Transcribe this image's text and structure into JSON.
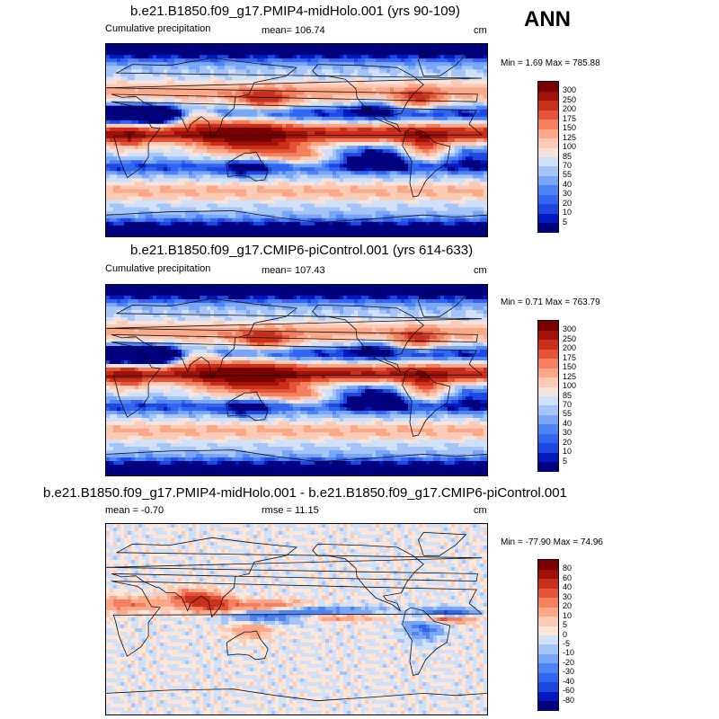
{
  "season": "ANN",
  "panels": [
    {
      "title": "b.e21.B1850.f09_g17.PMIP4-midHolo.001 (yrs 90-109)",
      "left_label": "Cumulative precipitation",
      "center_label": "mean= 106.74",
      "units": "cm",
      "minmax": "Min =   1.69 Max = 785.88",
      "kind": "precip"
    },
    {
      "title": "b.e21.B1850.f09_g17.CMIP6-piControl.001 (yrs 614-633)",
      "left_label": "Cumulative precipitation",
      "center_label": "mean= 107.43",
      "units": "cm",
      "minmax": "Min =   0.71 Max = 763.79",
      "kind": "precip"
    },
    {
      "title": "b.e21.B1850.f09_g17.PMIP4-midHolo.001 - b.e21.B1850.f09_g17.CMIP6-piControl.001",
      "left_label": "mean =  -0.70",
      "center_label": "rmse =  11.15",
      "units": "cm",
      "minmax": "Min = -77.90 Max =  74.96",
      "kind": "diff"
    }
  ],
  "chart_data": [
    {
      "type": "heatmap",
      "title": "b.e21.B1850.f09_g17.PMIP4-midHolo.001 (yrs 90-109)",
      "variable": "Cumulative precipitation",
      "units": "cm",
      "mean": 106.74,
      "min": 1.69,
      "max": 785.88,
      "colorbar_levels": [
        5,
        10,
        20,
        30,
        40,
        55,
        70,
        85,
        100,
        125,
        150,
        175,
        200,
        250,
        300
      ]
    },
    {
      "type": "heatmap",
      "title": "b.e21.B1850.f09_g17.CMIP6-piControl.001 (yrs 614-633)",
      "variable": "Cumulative precipitation",
      "units": "cm",
      "mean": 107.43,
      "min": 0.71,
      "max": 763.79,
      "colorbar_levels": [
        5,
        10,
        20,
        30,
        40,
        55,
        70,
        85,
        100,
        125,
        150,
        175,
        200,
        250,
        300
      ]
    },
    {
      "type": "heatmap",
      "title": "b.e21.B1850.f09_g17.PMIP4-midHolo.001 - b.e21.B1850.f09_g17.CMIP6-piControl.001",
      "units": "cm",
      "mean": -0.7,
      "rmse": 11.15,
      "min": -77.9,
      "max": 74.96,
      "colorbar_levels": [
        -80,
        -60,
        -40,
        -30,
        -20,
        -10,
        -5,
        0,
        5,
        10,
        20,
        30,
        40,
        60,
        80
      ]
    }
  ],
  "colors": {
    "precip_ramp": [
      "#00007f",
      "#0019bf",
      "#1e46e0",
      "#3265f0",
      "#4f84f5",
      "#7aa6f7",
      "#a5c4f7",
      "#cfe0f8",
      "#f6e4dc",
      "#fdcab5",
      "#fba889",
      "#f4805f",
      "#e55437",
      "#c8301c",
      "#a01208",
      "#7a0000"
    ],
    "diff_ramp": [
      "#00007f",
      "#0019bf",
      "#1e46e0",
      "#3265f0",
      "#4f84f5",
      "#7aa6f7",
      "#a5c4f7",
      "#cfe0f8",
      "#fde6d8",
      "#fdcab5",
      "#fba889",
      "#f4805f",
      "#e55437",
      "#c8301c",
      "#a01208",
      "#7a0000"
    ]
  }
}
